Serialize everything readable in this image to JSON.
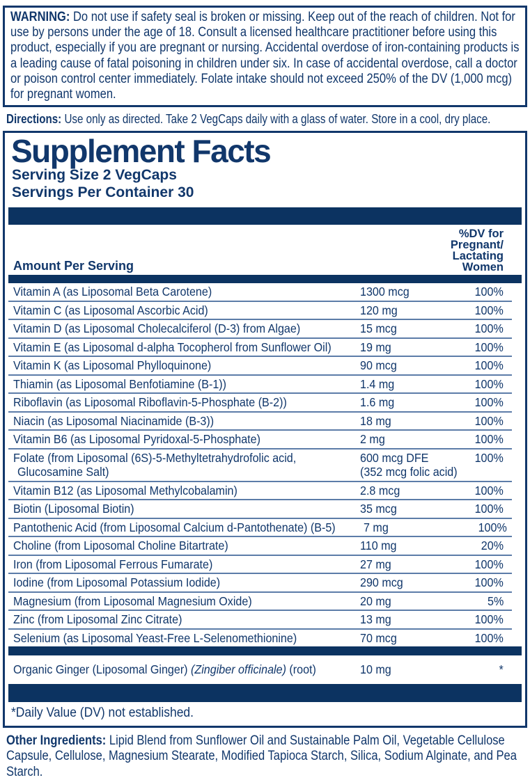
{
  "colors": {
    "navy_text": "#11376B",
    "bar_navy": "#0C3361",
    "hairline_blue": "#5C7CA8",
    "background": "#FFFFFF"
  },
  "warning": {
    "label": "WARNING:",
    "text": " Do not use if safety seal is broken or missing. Keep out of the reach of children. Not for use by persons under the age of 18. Consult a licensed healthcare practitioner before using this product, especially if you are pregnant or nursing. Accidental overdose of iron-containing products is a leading cause of fatal poisoning in children under six. In case of accidental overdose, call a doctor or poison control center immediately. Folate intake should not exceed 250% of the DV (1,000 mcg) for pregnant women."
  },
  "directions": {
    "label": "Directions:",
    "text": " Use only as directed. Take 2 VegCaps daily with a glass of water. Store in a cool, dry place."
  },
  "supplement_facts": {
    "title": "Supplement Facts",
    "serving_size": "Serving Size 2 VegCaps",
    "servings_per_container": "Servings Per Container 30",
    "amount_header": "Amount Per Serving",
    "dv_header_lines": [
      "%DV for",
      "Pregnant/",
      "Lactating",
      "Women"
    ],
    "rows": [
      {
        "name": "Vitamin A (as Liposomal Beta Carotene)",
        "amount": "1300 mcg",
        "dv": "100%"
      },
      {
        "name": "Vitamin C (as Liposomal Ascorbic Acid)",
        "amount": "120 mg",
        "dv": "100%"
      },
      {
        "name": "Vitamin D (as Liposomal Cholecalciferol (D-3) from Algae)",
        "amount": "15 mcg",
        "dv": "100%"
      },
      {
        "name": "Vitamin E (as Liposomal d-alpha Tocopherol from Sunflower Oil)",
        "amount": "19 mg",
        "dv": "100%"
      },
      {
        "name": "Vitamin K (as Liposomal Phylloquinone)",
        "amount": "90 mcg",
        "dv": "100%"
      },
      {
        "name": "Thiamin (as Liposomal Benfotiamine (B-1))",
        "amount": "1.4 mg",
        "dv": "100%"
      },
      {
        "name": "Riboflavin (as Liposomal Riboflavin-5-Phosphate (B-2))",
        "amount": "1.6 mg",
        "dv": "100%"
      },
      {
        "name": "Niacin (as Liposomal Niacinamide (B-3))",
        "amount": "18 mg",
        "dv": "100%"
      },
      {
        "name": "Vitamin B6 (as Liposomal Pyridoxal-5-Phosphate)",
        "amount": "2 mg",
        "dv": "100%"
      },
      {
        "name": "Folate (from Liposomal (6S)-5-Methyltetrahydrofolic acid,",
        "name2": "Glucosamine Salt)",
        "amount": "600 mcg DFE",
        "amount2": "(352 mcg folic acid)",
        "dv": "100%"
      },
      {
        "name": "Vitamin B12 (as Liposomal Methylcobalamin)",
        "amount": "2.8 mcg",
        "dv": "100%"
      },
      {
        "name": "Biotin (Liposomal Biotin)",
        "amount": "35 mcg",
        "dv": "100%"
      },
      {
        "name": "Pantothenic Acid (from Liposomal Calcium d-Pantothenate) (B-5)",
        "amount": "7 mg",
        "dv": "100%"
      },
      {
        "name": "Choline (from Liposomal Choline Bitartrate)",
        "amount": "110 mg",
        "dv": "20%"
      },
      {
        "name": "Iron (from Liposomal Ferrous Fumarate)",
        "amount": "27 mg",
        "dv": "100%"
      },
      {
        "name": "Iodine (from Liposomal Potassium Iodide)",
        "amount": "290 mcg",
        "dv": "100%"
      },
      {
        "name": "Magnesium (from Liposomal Magnesium Oxide)",
        "amount": "20 mg",
        "dv": "5%"
      },
      {
        "name": "Zinc (from Liposomal Zinc Citrate)",
        "amount": "13 mg",
        "dv": "100%"
      },
      {
        "name": "Selenium (as Liposomal Yeast-Free L-Selenomethionine)",
        "amount": "70 mcg",
        "dv": "100%"
      }
    ],
    "ginger_row": {
      "name_prefix": "Organic Ginger (Liposomal Ginger) ",
      "name_italic": "(Zingiber officinale)",
      "name_suffix": " (root)",
      "amount": "10 mg",
      "dv": "*"
    },
    "footnote": "*Daily Value (DV) not established."
  },
  "other_ingredients": {
    "label": "Other Ingredients:",
    "text": " Lipid Blend from Sunflower Oil and Sustainable Palm Oil, Vegetable Cellulose Capsule, Cellulose, Magnesium Stearate, Modified Tapioca Starch, Silica, Sodium Alginate, and Pea Starch."
  }
}
